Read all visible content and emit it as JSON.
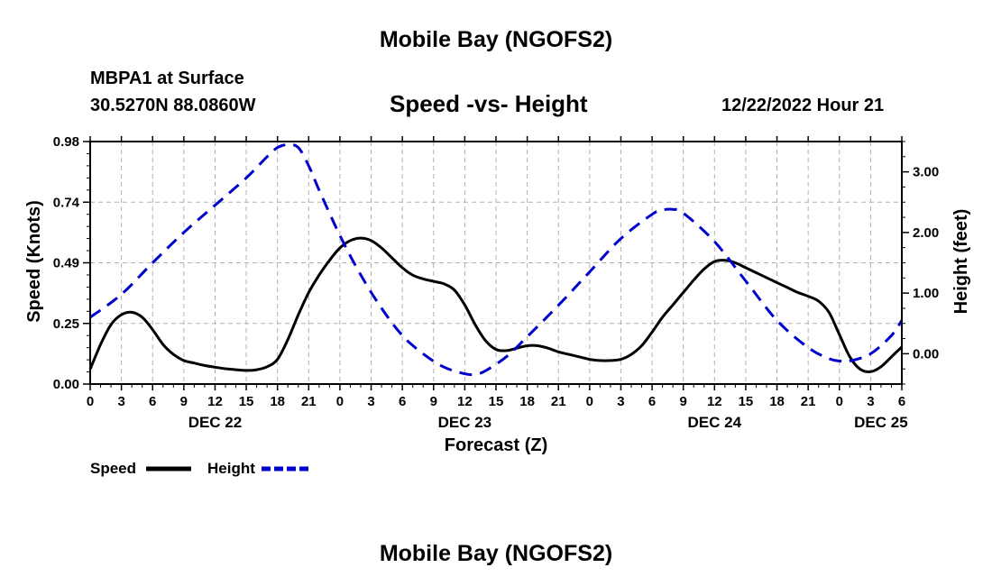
{
  "header": {
    "title": "Mobile Bay (NGOFS2)",
    "station": "MBPA1 at Surface",
    "coords": "30.5270N  88.0860W",
    "subtitle": "Speed -vs- Height",
    "runtime": "12/22/2022 Hour 21"
  },
  "footer": {
    "title": "Mobile Bay (NGOFS2)"
  },
  "chart_data": {
    "type": "line",
    "title": "Speed -vs- Height",
    "xlabel": "Forecast (Z)",
    "ylabel": "Speed (Knots)",
    "y2label": "Height (feet)",
    "xlim": [
      0,
      78
    ],
    "ylim": [
      0,
      0.98
    ],
    "y2lim": [
      -0.5,
      3.5
    ],
    "grid": true,
    "x_ticks": [
      {
        "x": 0,
        "label": "0"
      },
      {
        "x": 3,
        "label": "3"
      },
      {
        "x": 6,
        "label": "6"
      },
      {
        "x": 9,
        "label": "9"
      },
      {
        "x": 12,
        "label": "12"
      },
      {
        "x": 15,
        "label": "15"
      },
      {
        "x": 18,
        "label": "18"
      },
      {
        "x": 21,
        "label": "21"
      },
      {
        "x": 24,
        "label": "0"
      },
      {
        "x": 27,
        "label": "3"
      },
      {
        "x": 30,
        "label": "6"
      },
      {
        "x": 33,
        "label": "9"
      },
      {
        "x": 36,
        "label": "12"
      },
      {
        "x": 39,
        "label": "15"
      },
      {
        "x": 42,
        "label": "18"
      },
      {
        "x": 45,
        "label": "21"
      },
      {
        "x": 48,
        "label": "0"
      },
      {
        "x": 51,
        "label": "3"
      },
      {
        "x": 54,
        "label": "6"
      },
      {
        "x": 57,
        "label": "9"
      },
      {
        "x": 60,
        "label": "12"
      },
      {
        "x": 63,
        "label": "15"
      },
      {
        "x": 66,
        "label": "18"
      },
      {
        "x": 69,
        "label": "21"
      },
      {
        "x": 72,
        "label": "0"
      },
      {
        "x": 75,
        "label": "3"
      },
      {
        "x": 78,
        "label": "6"
      }
    ],
    "date_labels": [
      {
        "x": 12,
        "label": "DEC 22"
      },
      {
        "x": 36,
        "label": "DEC 23"
      },
      {
        "x": 60,
        "label": "DEC 24"
      },
      {
        "x": 76,
        "label": "DEC 25"
      }
    ],
    "y_ticks": [
      {
        "v": 0.0,
        "label": "0.00"
      },
      {
        "v": 0.245,
        "label": "0.25"
      },
      {
        "v": 0.49,
        "label": "0.49"
      },
      {
        "v": 0.735,
        "label": "0.74"
      },
      {
        "v": 0.98,
        "label": "0.98"
      }
    ],
    "y2_ticks": [
      {
        "v": 0,
        "label": "0.00"
      },
      {
        "v": 1,
        "label": "1.00"
      },
      {
        "v": 2,
        "label": "2.00"
      },
      {
        "v": 3,
        "label": "3.00"
      }
    ],
    "series": [
      {
        "name": "Speed",
        "axis": "left",
        "color": "#000000",
        "dash": "solid",
        "points": [
          [
            0,
            0.06
          ],
          [
            1,
            0.16
          ],
          [
            2,
            0.24
          ],
          [
            3,
            0.28
          ],
          [
            4,
            0.29
          ],
          [
            5,
            0.27
          ],
          [
            6,
            0.22
          ],
          [
            7,
            0.16
          ],
          [
            8,
            0.12
          ],
          [
            9,
            0.095
          ],
          [
            10,
            0.085
          ],
          [
            11,
            0.075
          ],
          [
            12,
            0.068
          ],
          [
            13,
            0.062
          ],
          [
            14,
            0.058
          ],
          [
            15,
            0.055
          ],
          [
            16,
            0.058
          ],
          [
            17,
            0.07
          ],
          [
            18,
            0.1
          ],
          [
            19,
            0.18
          ],
          [
            20,
            0.28
          ],
          [
            21,
            0.37
          ],
          [
            22,
            0.44
          ],
          [
            23,
            0.5
          ],
          [
            24,
            0.55
          ],
          [
            25,
            0.58
          ],
          [
            26,
            0.59
          ],
          [
            27,
            0.58
          ],
          [
            28,
            0.55
          ],
          [
            29,
            0.51
          ],
          [
            30,
            0.47
          ],
          [
            31,
            0.44
          ],
          [
            32,
            0.425
          ],
          [
            33,
            0.415
          ],
          [
            34,
            0.405
          ],
          [
            35,
            0.38
          ],
          [
            36,
            0.32
          ],
          [
            37,
            0.24
          ],
          [
            38,
            0.175
          ],
          [
            39,
            0.14
          ],
          [
            40,
            0.135
          ],
          [
            41,
            0.145
          ],
          [
            42,
            0.155
          ],
          [
            43,
            0.155
          ],
          [
            44,
            0.145
          ],
          [
            45,
            0.13
          ],
          [
            46,
            0.12
          ],
          [
            47,
            0.11
          ],
          [
            48,
            0.1
          ],
          [
            49,
            0.095
          ],
          [
            50,
            0.095
          ],
          [
            51,
            0.1
          ],
          [
            52,
            0.12
          ],
          [
            53,
            0.155
          ],
          [
            54,
            0.21
          ],
          [
            55,
            0.27
          ],
          [
            56,
            0.32
          ],
          [
            57,
            0.37
          ],
          [
            58,
            0.42
          ],
          [
            59,
            0.465
          ],
          [
            60,
            0.495
          ],
          [
            61,
            0.5
          ],
          [
            62,
            0.49
          ],
          [
            63,
            0.47
          ],
          [
            64,
            0.45
          ],
          [
            65,
            0.43
          ],
          [
            66,
            0.41
          ],
          [
            67,
            0.39
          ],
          [
            68,
            0.37
          ],
          [
            69,
            0.355
          ],
          [
            70,
            0.335
          ],
          [
            71,
            0.29
          ],
          [
            72,
            0.2
          ],
          [
            73,
            0.11
          ],
          [
            74,
            0.06
          ],
          [
            75,
            0.05
          ],
          [
            76,
            0.07
          ],
          [
            77,
            0.11
          ],
          [
            78,
            0.15
          ]
        ]
      },
      {
        "name": "Height",
        "axis": "right",
        "color": "#0000cc",
        "dash": "dashed",
        "points": [
          [
            0,
            0.6
          ],
          [
            3,
            0.98
          ],
          [
            6,
            1.5
          ],
          [
            9,
            2.0
          ],
          [
            12,
            2.45
          ],
          [
            15,
            2.9
          ],
          [
            17,
            3.25
          ],
          [
            18,
            3.4
          ],
          [
            19,
            3.45
          ],
          [
            20,
            3.4
          ],
          [
            21,
            3.1
          ],
          [
            22,
            2.7
          ],
          [
            24,
            1.95
          ],
          [
            26,
            1.3
          ],
          [
            28,
            0.75
          ],
          [
            30,
            0.3
          ],
          [
            32,
            0.0
          ],
          [
            34,
            -0.22
          ],
          [
            36,
            -0.33
          ],
          [
            37,
            -0.34
          ],
          [
            38,
            -0.28
          ],
          [
            40,
            -0.05
          ],
          [
            42,
            0.28
          ],
          [
            45,
            0.8
          ],
          [
            48,
            1.35
          ],
          [
            51,
            1.9
          ],
          [
            54,
            2.3
          ],
          [
            55,
            2.37
          ],
          [
            56,
            2.38
          ],
          [
            57,
            2.32
          ],
          [
            60,
            1.85
          ],
          [
            63,
            1.2
          ],
          [
            66,
            0.55
          ],
          [
            69,
            0.1
          ],
          [
            71,
            -0.08
          ],
          [
            72,
            -0.12
          ],
          [
            73,
            -0.12
          ],
          [
            75,
            0.0
          ],
          [
            77,
            0.3
          ],
          [
            78,
            0.55
          ]
        ]
      }
    ],
    "legend": {
      "position": "bottom-left",
      "labels": [
        "Speed",
        "Height"
      ]
    }
  }
}
